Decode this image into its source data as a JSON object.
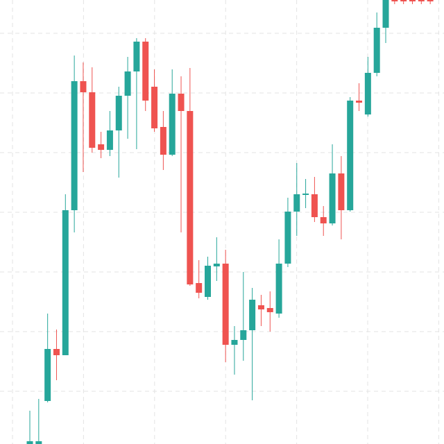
{
  "chart_data": {
    "type": "candlestick",
    "open": [
      0,
      0,
      62,
      137,
      128,
      337,
      523,
      507,
      432,
      424,
      452,
      502,
      537,
      580,
      515,
      457,
      417,
      505,
      480,
      232,
      212,
      256,
      260,
      143,
      150,
      164,
      200,
      196,
      188,
      260,
      335,
      359,
      360,
      327,
      318,
      390,
      337,
      495,
      475,
      535,
      600,
      640,
      640,
      640,
      640,
      640
    ],
    "high": [
      48,
      65,
      188,
      165,
      360,
      560,
      550,
      543,
      450,
      480,
      515,
      558,
      585,
      585,
      540,
      480,
      540,
      530,
      542,
      265,
      270,
      298,
      280,
      170,
      248,
      225,
      215,
      220,
      295,
      355,
      405,
      382,
      385,
      343,
      432,
      415,
      500,
      520,
      558,
      622,
      640,
      640,
      640,
      640,
      640,
      640
    ],
    "low": [
      0,
      0,
      60,
      92,
      128,
      305,
      392,
      420,
      412,
      415,
      384,
      440,
      425,
      480,
      450,
      395,
      415,
      305,
      228,
      210,
      208,
      235,
      118,
      100,
      120,
      63,
      170,
      162,
      182,
      255,
      300,
      340,
      320,
      300,
      315,
      295,
      335,
      480,
      472,
      530,
      578,
      634,
      634,
      634,
      634,
      634
    ],
    "close": [
      4,
      4,
      137,
      128,
      337,
      523,
      507,
      427,
      424,
      452,
      502,
      537,
      580,
      495,
      455,
      417,
      505,
      480,
      230,
      218,
      257,
      260,
      143,
      150,
      164,
      208,
      194,
      190,
      260,
      335,
      360,
      361,
      327,
      318,
      390,
      337,
      495,
      492,
      535,
      600,
      640,
      638,
      638,
      638,
      638,
      638
    ],
    "up_color": "#26a69a",
    "down_color": "#ef5350",
    "ylim": [
      0,
      640
    ],
    "grid": true
  }
}
